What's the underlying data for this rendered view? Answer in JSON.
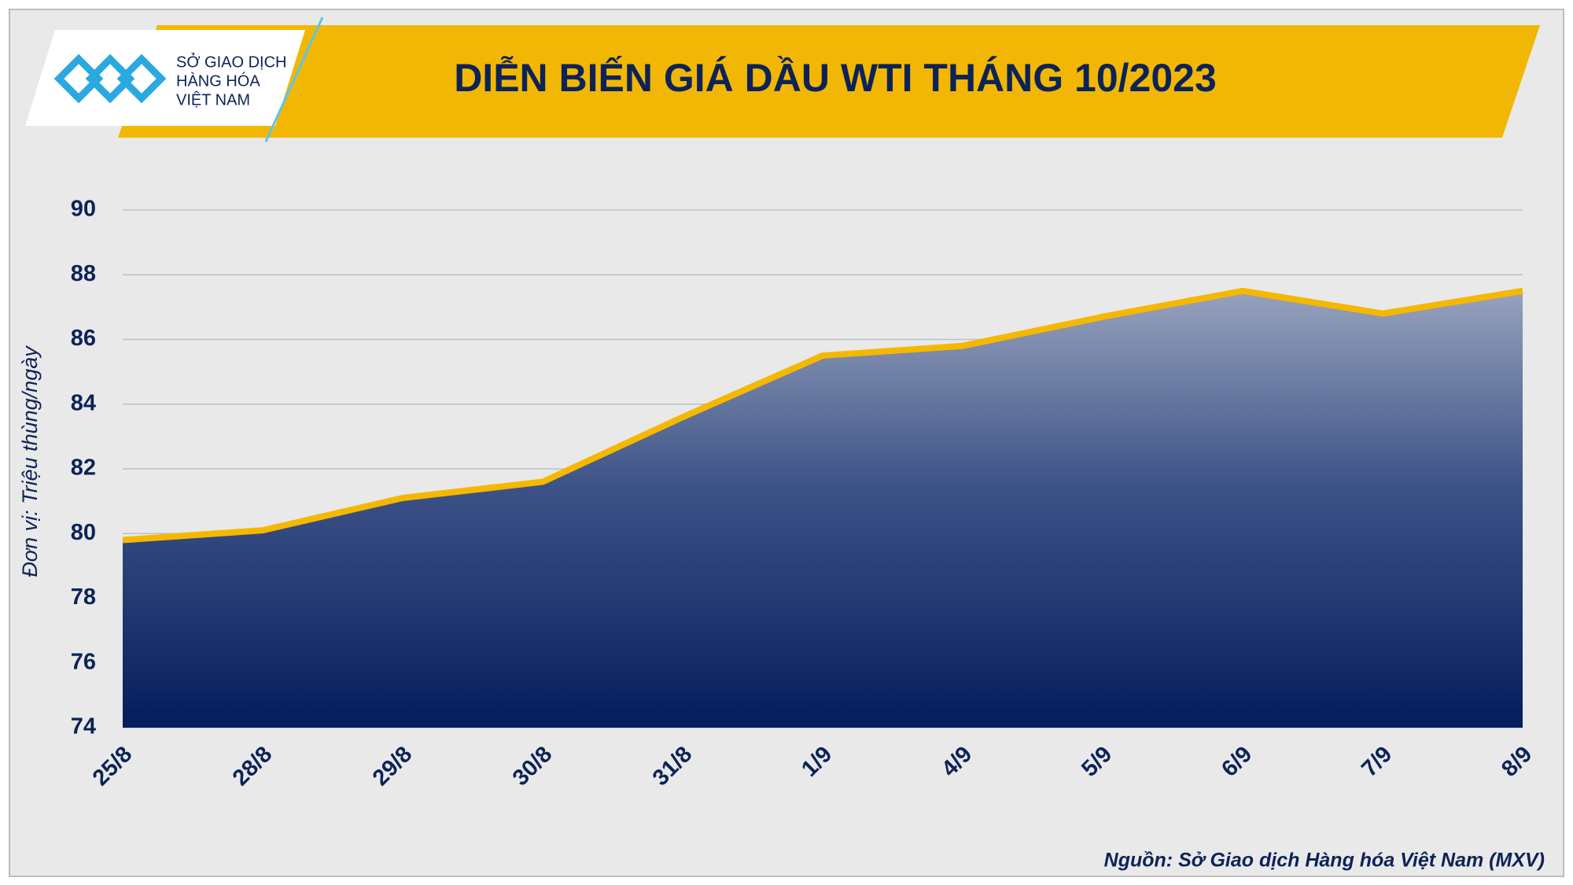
{
  "logo": {
    "lines": [
      "SỞ GIAO DỊCH",
      "HÀNG HÓA",
      "VIỆT NAM"
    ]
  },
  "chart_data": {
    "type": "area",
    "title": "DIỄN BIẾN GIÁ DẦU WTI THÁNG 10/2023",
    "y_label": "Đơn vị: Triệu thùng/ngày",
    "source": "Nguồn: Sở Giao dịch Hàng hóa Việt Nam (MXV)",
    "categories": [
      "25/8",
      "28/8",
      "29/8",
      "30/8",
      "31/8",
      "1/9",
      "4/9",
      "5/9",
      "6/9",
      "7/9",
      "8/9"
    ],
    "values": [
      79.8,
      80.1,
      81.1,
      81.6,
      83.6,
      85.5,
      85.8,
      86.7,
      87.5,
      86.8,
      87.5
    ],
    "color": "#f5b800",
    "ylim": [
      74,
      90
    ],
    "yticks": [
      74,
      76,
      78,
      80,
      82,
      84,
      86,
      88,
      90
    ],
    "grid": true
  }
}
